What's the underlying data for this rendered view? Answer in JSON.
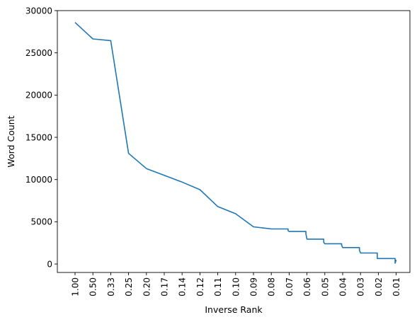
{
  "chart_data": {
    "type": "line",
    "xlabel": "Inverse Rank",
    "ylabel": "Word Count",
    "ylim": [
      -1000,
      30000
    ],
    "yticks": [
      0,
      5000,
      10000,
      15000,
      20000,
      25000,
      30000
    ],
    "xtick_labels": [
      "1.00",
      "0.50",
      "0.33",
      "0.25",
      "0.20",
      "0.17",
      "0.14",
      "0.12",
      "0.11",
      "0.10",
      "0.09",
      "0.08",
      "0.07",
      "0.06",
      "0.05",
      "0.04",
      "0.03",
      "0.02",
      "0.01"
    ],
    "grid": false,
    "line_color": "#1f77b4",
    "series": [
      {
        "rank": [
          1,
          2,
          3,
          4,
          5,
          6,
          7,
          8,
          9,
          10,
          11,
          12,
          13,
          14,
          15,
          16,
          17,
          18,
          19
        ],
        "values": [
          28600,
          26650,
          26450,
          13100,
          11300,
          10500,
          9700,
          8800,
          6800,
          5950,
          4400,
          4150,
          3850,
          2950,
          2400,
          1950,
          1300,
          650,
          500
        ],
        "drop_after": [
          0,
          0,
          0,
          0,
          0,
          0,
          0,
          0,
          0,
          0,
          0,
          200,
          300,
          400,
          150,
          300,
          650,
          550,
          0
        ]
      }
    ]
  }
}
